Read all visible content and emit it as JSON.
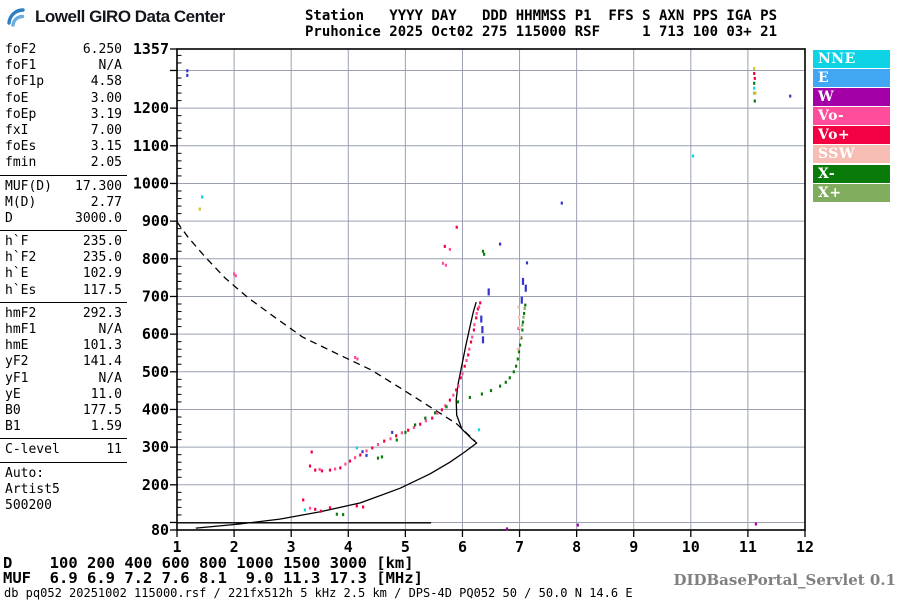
{
  "logo": {
    "text": "Lowell GIRO Data Center"
  },
  "header": {
    "line1": "Station   YYYY DAY   DDD HHMMSS P1  FFS S AXN PPS IGA PS",
    "line2": "Pruhonice 2025 Oct02 275 115000 RSF     1 713 100 03+ 21"
  },
  "params": {
    "groups": [
      {
        "rows": [
          {
            "label": "foF2",
            "value": "6.250"
          },
          {
            "label": "foF1",
            "value": "N/A"
          },
          {
            "label": "foF1p",
            "value": "4.58"
          },
          {
            "label": "foE",
            "value": "3.00"
          },
          {
            "label": "foEp",
            "value": "3.19"
          },
          {
            "label": "fxI",
            "value": "7.00"
          },
          {
            "label": "foEs",
            "value": "3.15"
          },
          {
            "label": "fmin",
            "value": "2.05"
          }
        ]
      },
      {
        "rows": [
          {
            "label": "MUF(D)",
            "value": "17.300"
          },
          {
            "label": "M(D)",
            "value": "2.77"
          },
          {
            "label": "D",
            "value": "3000.0"
          }
        ]
      },
      {
        "rows": [
          {
            "label": "h`F",
            "value": "235.0"
          },
          {
            "label": "h`F2",
            "value": "235.0"
          },
          {
            "label": "h`E",
            "value": "102.9"
          },
          {
            "label": "h`Es",
            "value": "117.5"
          }
        ]
      },
      {
        "rows": [
          {
            "label": "hmF2",
            "value": "292.3"
          },
          {
            "label": "hmF1",
            "value": "N/A"
          },
          {
            "label": "hmE",
            "value": "101.3"
          },
          {
            "label": "yF2",
            "value": "141.4"
          },
          {
            "label": "yF1",
            "value": "N/A"
          },
          {
            "label": "yE",
            "value": "11.0"
          },
          {
            "label": "B0",
            "value": "177.5"
          },
          {
            "label": "B1",
            "value": "1.59"
          }
        ]
      },
      {
        "rows": [
          {
            "label": "C-level",
            "value": "11"
          }
        ]
      }
    ],
    "auto_lines": [
      "Auto:",
      "Artist5",
      "500200"
    ]
  },
  "legend": [
    {
      "label": "NNE",
      "color": "#0ED3E5"
    },
    {
      "label": "E",
      "color": "#41A7F2"
    },
    {
      "label": "W",
      "color": "#A300A8"
    },
    {
      "label": "Vo-",
      "color": "#FF4D9B"
    },
    {
      "label": "Vo+",
      "color": "#F30042"
    },
    {
      "label": "SSW",
      "color": "#F6BDB5"
    },
    {
      "label": "X-",
      "color": "#0A7A0A",
      "gap_before": true
    },
    {
      "label": "X+",
      "color": "#7FAD5D"
    }
  ],
  "chart_data": {
    "type": "scatter",
    "title": "Pruhonice ionogram 2025 Oct02 275 115000",
    "xlabel": "[MHz]",
    "ylabel": "[km]",
    "xlim": [
      1,
      12
    ],
    "ylim": [
      80,
      1357
    ],
    "grid": true,
    "legend_position": "outside-top-right",
    "x_ticks": [
      [
        1,
        "1"
      ],
      [
        2,
        "2"
      ],
      [
        3,
        "3"
      ],
      [
        4,
        "4"
      ],
      [
        5,
        "5"
      ],
      [
        6,
        "6"
      ],
      [
        7,
        "7"
      ],
      [
        8,
        "8"
      ],
      [
        9,
        "9"
      ],
      [
        10,
        "10"
      ],
      [
        11,
        "11"
      ],
      [
        12,
        "12"
      ]
    ],
    "y_ticks": [
      [
        1357,
        "1357"
      ],
      [
        1200,
        "1200"
      ],
      [
        1100,
        "1100"
      ],
      [
        1000,
        "1000"
      ],
      [
        900,
        "900"
      ],
      [
        800,
        "800"
      ],
      [
        700,
        "700"
      ],
      [
        600,
        "600"
      ],
      [
        500,
        "500"
      ],
      [
        400,
        "400"
      ],
      [
        300,
        "300"
      ],
      [
        200,
        "200"
      ],
      [
        80,
        "80"
      ]
    ],
    "muf_table": {
      "D_km": [
        100,
        200,
        400,
        600,
        800,
        1000,
        1500,
        3000
      ],
      "MUF_MHz": [
        6.9,
        6.9,
        7.2,
        7.6,
        8.1,
        9.0,
        11.3,
        17.3
      ]
    },
    "series": [
      {
        "name": "muf-transmission-curve",
        "type": "dashed",
        "color": "#000000",
        "points": [
          [
            1.0,
            898
          ],
          [
            1.2,
            856
          ],
          [
            1.5,
            804
          ],
          [
            1.85,
            748
          ],
          [
            2.25,
            696
          ],
          [
            2.7,
            646
          ],
          [
            3.2,
            592
          ],
          [
            3.8,
            548
          ],
          [
            4.4,
            505
          ],
          [
            4.9,
            458
          ],
          [
            5.4,
            410
          ],
          [
            5.9,
            362
          ],
          [
            6.22,
            316
          ]
        ]
      },
      {
        "name": "model-e-trace",
        "type": "line",
        "color": "#000000",
        "points": [
          [
            1.0,
            99
          ],
          [
            5.45,
            99
          ]
        ]
      },
      {
        "name": "model-f-trace",
        "type": "line",
        "color": "#000000",
        "points": [
          [
            1.33,
            85
          ],
          [
            2.1,
            96
          ],
          [
            2.8,
            109
          ],
          [
            3.5,
            128
          ],
          [
            4.21,
            152
          ],
          [
            4.91,
            191
          ],
          [
            5.43,
            229
          ],
          [
            5.78,
            260
          ],
          [
            6.04,
            287
          ],
          [
            6.18,
            303
          ],
          [
            6.25,
            311
          ],
          [
            6.15,
            324
          ],
          [
            5.99,
            348
          ],
          [
            5.9,
            385
          ],
          [
            5.89,
            425
          ],
          [
            5.92,
            465
          ],
          [
            5.99,
            518
          ],
          [
            6.06,
            571
          ],
          [
            6.13,
            619
          ],
          [
            6.19,
            659
          ],
          [
            6.24,
            685
          ]
        ]
      },
      {
        "name": "o-trace-vo-plus",
        "type": "dots",
        "color": "#F30042",
        "points": [
          [
            3.33,
            250
          ],
          [
            3.42,
            239
          ],
          [
            3.54,
            237
          ],
          [
            3.68,
            239
          ],
          [
            3.86,
            245
          ],
          [
            4.03,
            263
          ],
          [
            4.21,
            279
          ],
          [
            4.42,
            298
          ],
          [
            4.63,
            316
          ],
          [
            4.84,
            330
          ],
          [
            5.05,
            345
          ],
          [
            5.26,
            361
          ],
          [
            5.47,
            377
          ],
          [
            5.64,
            399
          ],
          [
            5.78,
            425
          ],
          [
            5.89,
            452
          ],
          [
            5.97,
            484
          ],
          [
            6.04,
            515
          ],
          [
            6.1,
            545
          ],
          [
            6.15,
            579
          ],
          [
            6.2,
            611
          ],
          [
            6.24,
            643
          ],
          [
            6.27,
            667
          ],
          [
            6.31,
            683
          ],
          [
            3.36,
            287
          ],
          [
            3.21,
            160
          ],
          [
            3.42,
            135
          ],
          [
            3.52,
            130
          ],
          [
            3.68,
            139
          ],
          [
            4.15,
            144
          ],
          [
            4.26,
            141
          ],
          [
            5.69,
            833
          ],
          [
            5.9,
            884
          ],
          [
            11.11,
            1292
          ],
          [
            11.12,
            1279
          ]
        ]
      },
      {
        "name": "o-trace-vo-minus",
        "type": "dots",
        "color": "#FF4D9B",
        "points": [
          [
            3.5,
            241
          ],
          [
            3.77,
            242
          ],
          [
            3.95,
            255
          ],
          [
            4.12,
            272
          ],
          [
            4.32,
            290
          ],
          [
            4.52,
            307
          ],
          [
            4.74,
            322
          ],
          [
            4.94,
            338
          ],
          [
            5.15,
            352
          ],
          [
            5.36,
            370
          ],
          [
            5.56,
            390
          ],
          [
            5.7,
            410
          ],
          [
            5.84,
            438
          ],
          [
            5.93,
            462
          ],
          [
            6.0,
            495
          ],
          [
            6.07,
            530
          ],
          [
            6.12,
            560
          ],
          [
            6.17,
            592
          ],
          [
            6.21,
            625
          ],
          [
            6.25,
            655
          ],
          [
            6.29,
            672
          ],
          [
            5.66,
            788
          ],
          [
            5.71,
            783
          ],
          [
            5.78,
            825
          ],
          [
            4.12,
            538
          ],
          [
            4.16,
            534
          ],
          [
            2.0,
            760
          ],
          [
            2.03,
            755
          ],
          [
            3.33,
            138
          ],
          [
            6.98,
            615
          ]
        ]
      },
      {
        "name": "x-trace-x-minus",
        "type": "dots",
        "color": "#0A7A0A",
        "points": [
          [
            3.8,
            122
          ],
          [
            3.91,
            121
          ],
          [
            4.52,
            271
          ],
          [
            4.59,
            274
          ],
          [
            4.85,
            319
          ],
          [
            5.0,
            339
          ],
          [
            5.17,
            359
          ],
          [
            5.35,
            377
          ],
          [
            5.52,
            391
          ],
          [
            5.72,
            407
          ],
          [
            5.92,
            420
          ],
          [
            6.13,
            432
          ],
          [
            6.34,
            441
          ],
          [
            6.5,
            450
          ],
          [
            6.66,
            462
          ],
          [
            6.76,
            472
          ],
          [
            6.83,
            484
          ],
          [
            6.9,
            500
          ],
          [
            6.94,
            515
          ],
          [
            6.97,
            534
          ],
          [
            6.99,
            553
          ],
          [
            7.01,
            571
          ],
          [
            7.03,
            590
          ],
          [
            7.05,
            611
          ],
          [
            7.06,
            632
          ],
          [
            7.08,
            655
          ],
          [
            7.1,
            677
          ],
          [
            6.36,
            820
          ],
          [
            6.38,
            812
          ],
          [
            11.12,
            1219
          ],
          [
            11.11,
            1266
          ]
        ]
      },
      {
        "name": "x-trace-x-plus",
        "type": "dots",
        "color": "#7FAD5D",
        "points": [
          [
            7.05,
            624
          ],
          [
            7.07,
            645
          ],
          [
            7.09,
            668
          ],
          [
            11.11,
            1240
          ]
        ]
      },
      {
        "name": "e-echoes-bars",
        "type": "dots",
        "mh": 7,
        "color": "#3434CF",
        "points": [
          [
            6.33,
            640
          ],
          [
            6.35,
            612
          ],
          [
            6.36,
            585
          ],
          [
            6.46,
            712
          ],
          [
            7.06,
            740
          ],
          [
            7.11,
            722
          ],
          [
            7.04,
            690
          ]
        ]
      },
      {
        "name": "e-echoes-dots",
        "type": "dots",
        "color": "#3434CF",
        "points": [
          [
            6.66,
            839
          ],
          [
            7.13,
            789
          ],
          [
            7.74,
            948
          ],
          [
            1.18,
            1299
          ],
          [
            1.18,
            1287
          ],
          [
            4.25,
            288
          ],
          [
            4.32,
            278
          ],
          [
            4.77,
            339
          ],
          [
            11.74,
            1232
          ]
        ]
      },
      {
        "name": "nne-echoes",
        "type": "dots",
        "color": "#0ED3E5",
        "points": [
          [
            1.44,
            964
          ],
          [
            3.24,
            133
          ],
          [
            4.15,
            298
          ],
          [
            6.29,
            346
          ],
          [
            10.04,
            1073
          ],
          [
            11.11,
            1253
          ]
        ]
      },
      {
        "name": "ssw-echoes",
        "type": "dots",
        "color": "#F6BDB5",
        "points": [
          [
            6.97,
            560
          ],
          [
            6.98,
            672
          ],
          [
            6.99,
            645
          ],
          [
            7.0,
            618
          ],
          [
            7.01,
            592
          ]
        ]
      },
      {
        "name": "w-echoes",
        "type": "dots",
        "color": "#A300A8",
        "points": [
          [
            6.78,
            83
          ],
          [
            8.02,
            93
          ],
          [
            11.14,
            96
          ]
        ]
      },
      {
        "name": "other-echoes",
        "type": "dots",
        "color": "#C8C820",
        "points": [
          [
            1.4,
            932
          ],
          [
            11.11,
            1305
          ],
          [
            11.13,
            1240
          ]
        ]
      }
    ]
  },
  "footer": {
    "d_row": "D    100 200 400 600 800 1000 1500 3000 [km]",
    "muf_row": "MUF  6.9 6.9 7.2 7.6 8.1  9.0 11.3 17.3 [MHz]",
    "status": "db pq052 20251002 115000.rsf / 221fx512h 5 kHz 2.5 km / DPS-4D PQ052 50 / 50.0 N 14.6 E",
    "servlet": "DIDBasePortal_Servlet 0.1"
  },
  "colors": {
    "grid": "#9aa0b2",
    "axis": "#000000",
    "servlet_text": "#808080"
  }
}
